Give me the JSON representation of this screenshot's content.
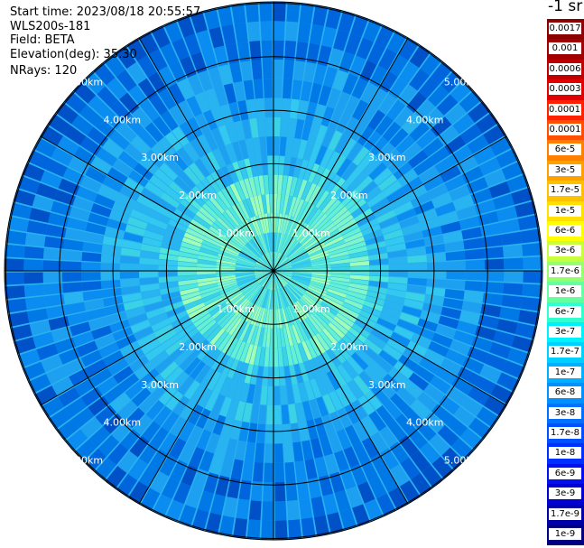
{
  "info": {
    "start_time": "Start time: 2023/08/18 20:55:57",
    "instrument": "WLS200s-181",
    "field": "Field: BETA",
    "elevation": "Elevation(deg): 35.30",
    "nrays": "NRays: 120"
  },
  "colorbar": {
    "unit_label": "-1 sr",
    "levels": [
      "0.0017",
      "0.001",
      "0.0006",
      "0.0003",
      "0.00017",
      "0.0001",
      "6e-5",
      "3e-5",
      "1.7e-5",
      "1e-5",
      "6e-6",
      "3e-6",
      "1.7e-6",
      "1e-6",
      "6e-7",
      "3e-7",
      "1.7e-7",
      "1e-7",
      "6e-8",
      "3e-8",
      "1.7e-8",
      "1e-8",
      "6e-9",
      "3e-9",
      "1.7e-9",
      "1e-9"
    ],
    "colors": [
      "#8b0000",
      "#a00000",
      "#c00000",
      "#e00000",
      "#ff2000",
      "#ff5000",
      "#ff8000",
      "#ffa000",
      "#ffc000",
      "#ffe000",
      "#ffff00",
      "#c8ff3c",
      "#96ff6e",
      "#64ffa0",
      "#30ffd0",
      "#00f0ff",
      "#00d0ff",
      "#00b0ff",
      "#0090ff",
      "#0070ff",
      "#0050ff",
      "#0030ff",
      "#0010f0",
      "#0000d0",
      "#0000a8",
      "#000080"
    ]
  },
  "chart_data": {
    "type": "ppi",
    "field": "BETA",
    "elevation_deg": 35.3,
    "n_rays": 120,
    "range_rings_km": [
      1.0,
      2.0,
      3.0,
      4.0,
      5.0
    ],
    "ring_labels": [
      "1.00km",
      "2.00km",
      "3.00km",
      "4.00km",
      "5.00km"
    ],
    "max_range_km": 5.0,
    "radial_lines_deg": [
      0,
      30,
      60,
      90,
      120,
      150,
      180,
      210,
      240,
      270,
      300,
      330
    ],
    "dominant_values": "near range 1e-7 to 3e-7 (cyan/green), outer range 1.7e-8 to 6e-8 (blue)",
    "colormap": "jet"
  }
}
